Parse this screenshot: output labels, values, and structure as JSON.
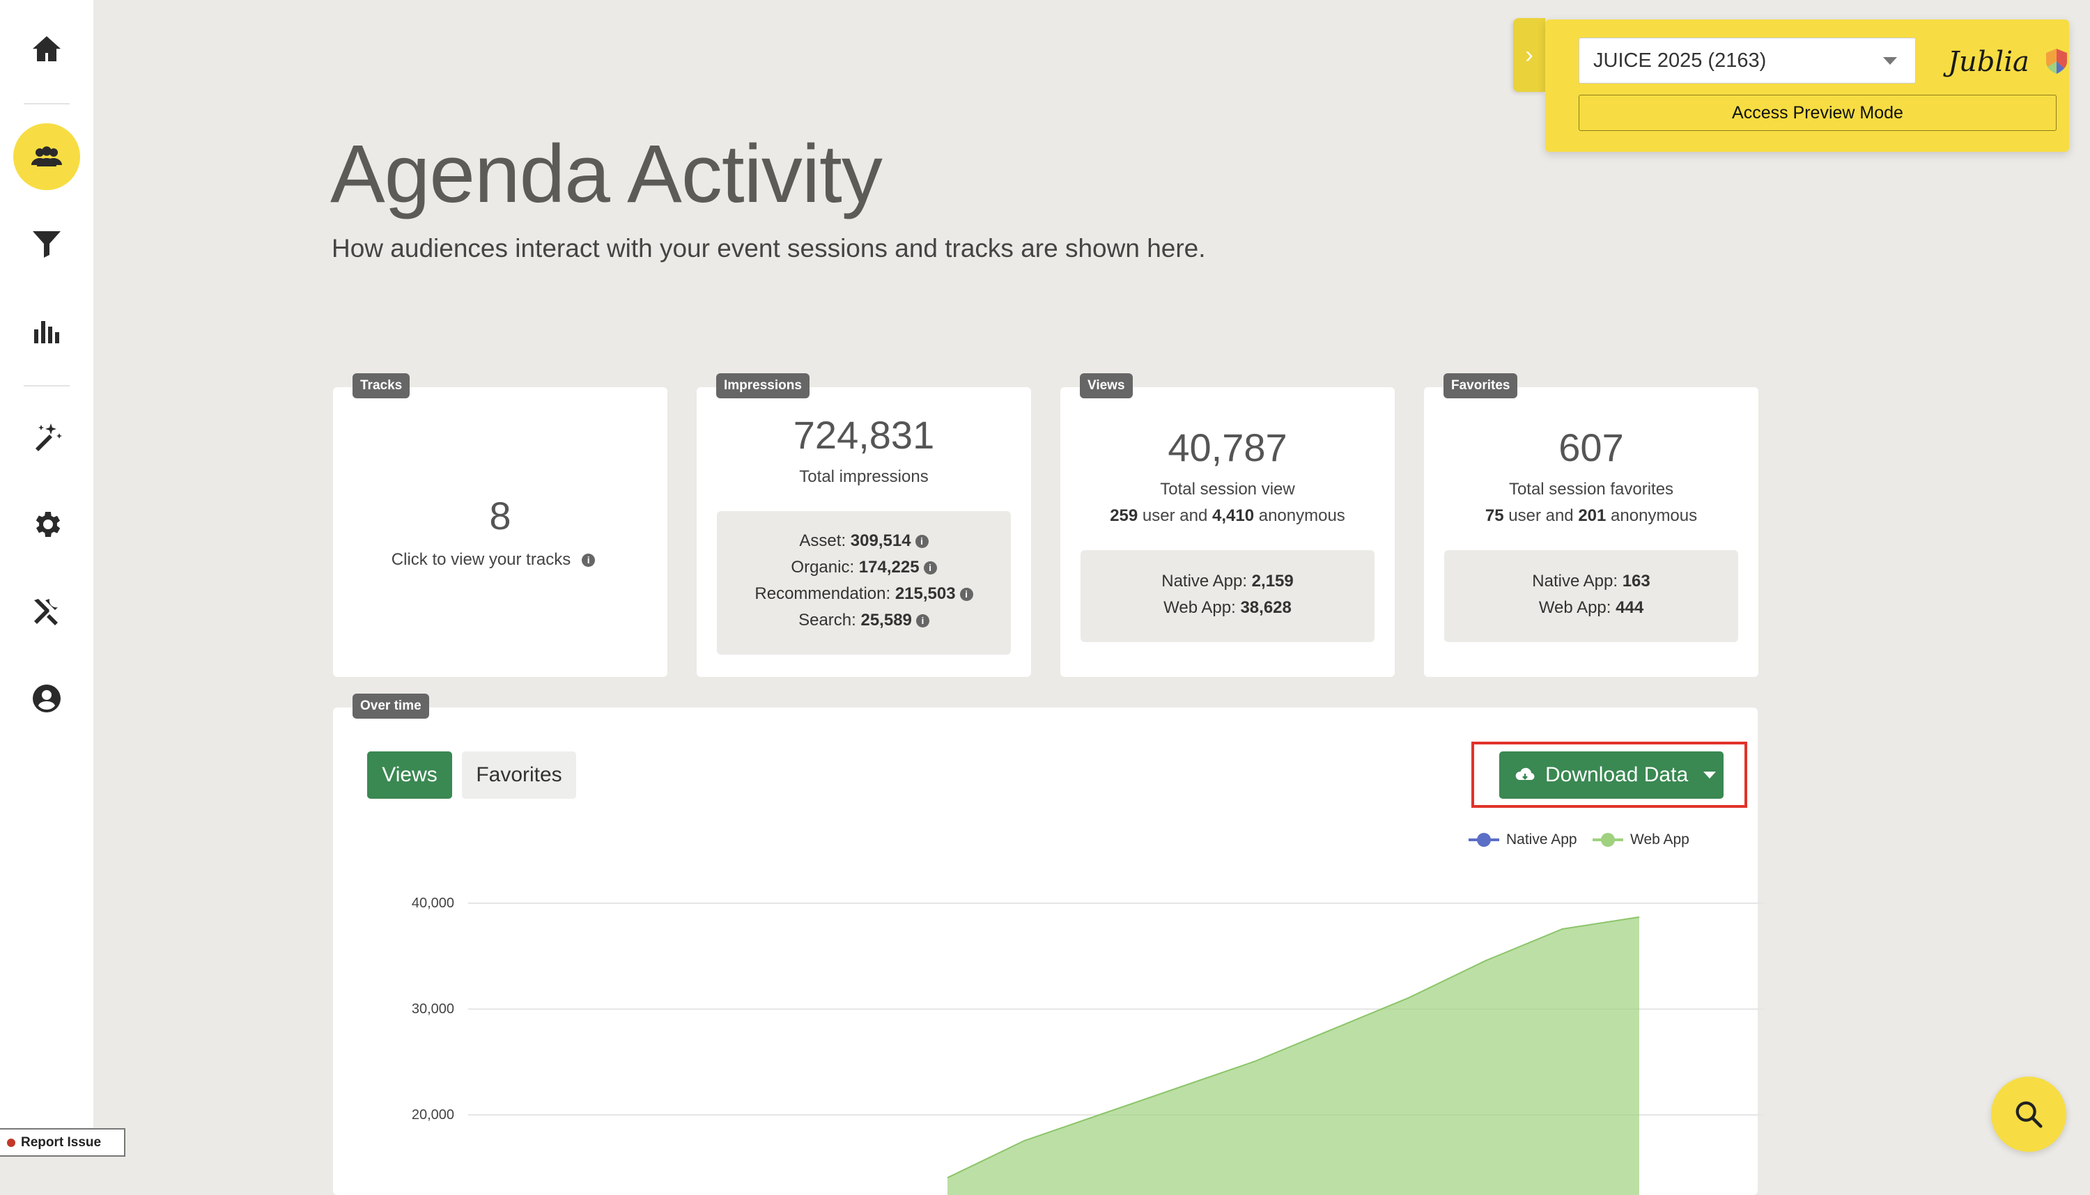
{
  "sidebar": {
    "icons": [
      "home-icon",
      "users-icon",
      "filter-icon",
      "bar-chart-icon",
      "magic-wand-icon",
      "gear-icon",
      "tools-icon",
      "user-icon"
    ]
  },
  "header": {
    "title": "Agenda Activity",
    "subtitle": "How audiences interact with your event sessions and tracks are shown here."
  },
  "widget": {
    "event": "JUICE 2025 (2163)",
    "brand": "Jublia",
    "preview": "Access Preview Mode"
  },
  "cards": {
    "tracks": {
      "tag": "Tracks",
      "value": "8",
      "label": "Click to view your tracks"
    },
    "impressions": {
      "tag": "Impressions",
      "value": "724,831",
      "label": "Total impressions",
      "rows": [
        {
          "label": "Asset:",
          "value": "309,514"
        },
        {
          "label": "Organic:",
          "value": "174,225"
        },
        {
          "label": "Recommendation:",
          "value": "215,503"
        },
        {
          "label": "Search:",
          "value": "25,589"
        }
      ]
    },
    "views": {
      "tag": "Views",
      "value": "40,787",
      "label": "Total session view",
      "users": "259",
      "user_text": "user and",
      "anon": "4,410",
      "anon_text": "anonymous",
      "rows": [
        {
          "label": "Native App:",
          "value": "2,159"
        },
        {
          "label": "Web App:",
          "value": "38,628"
        }
      ]
    },
    "favorites": {
      "tag": "Favorites",
      "value": "607",
      "label": "Total session favorites",
      "users": "75",
      "user_text": "user and",
      "anon": "201",
      "anon_text": "anonymous",
      "rows": [
        {
          "label": "Native App:",
          "value": "163"
        },
        {
          "label": "Web App:",
          "value": "444"
        }
      ]
    }
  },
  "over_time": {
    "tag": "Over time",
    "tabs": [
      "Views",
      "Favorites"
    ],
    "download": "Download Data"
  },
  "report_issue": "Report Issue",
  "colors": {
    "accent": "#f7dd43",
    "primary": "#3a8852",
    "native": "#5b6fc6",
    "web": "#9fd17f",
    "highlight": "#e0332a"
  },
  "chart_data": {
    "type": "area",
    "legend": [
      "Native App",
      "Web App"
    ],
    "legend_position": "top-right",
    "yticks": [
      "40,000",
      "30,000",
      "20,000"
    ],
    "ylim": [
      0,
      40000
    ],
    "grid": true,
    "series": [
      {
        "name": "Web App",
        "values": [
          14000,
          17500,
          20000,
          22500,
          25000,
          28000,
          31000,
          34500,
          37500,
          38628
        ]
      },
      {
        "name": "Native App",
        "values": []
      }
    ]
  }
}
